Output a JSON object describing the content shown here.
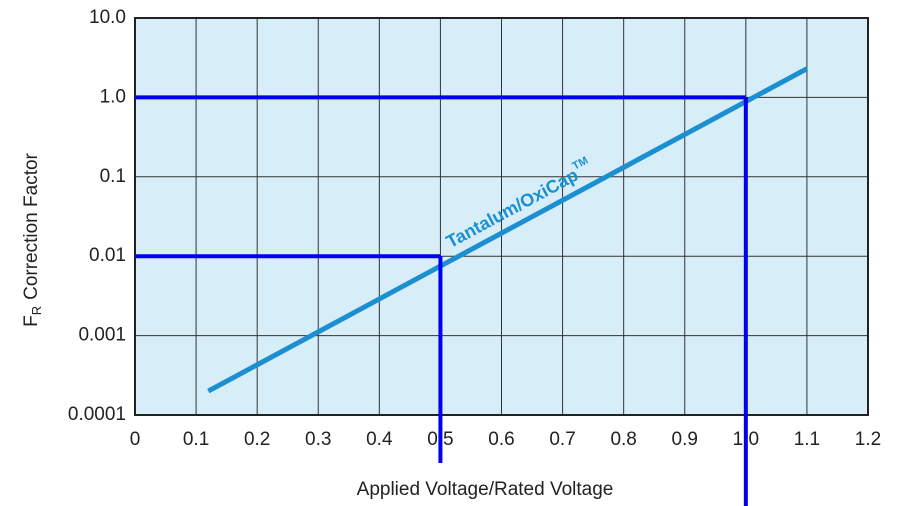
{
  "chart_data": {
    "type": "line",
    "x_label": "Applied Voltage/Rated Voltage",
    "y_label": {
      "symbol": "F",
      "subscript": "R",
      "text": "Correction Factor"
    },
    "annotation": {
      "text": "Tantalum/OxiCap",
      "superscript": "TM"
    },
    "log_y": true,
    "grid": true,
    "background": "#d7eef9",
    "xlim": [
      0,
      1.2
    ],
    "xticks": [
      0,
      0.1,
      0.2,
      0.3,
      0.4,
      0.5,
      0.6,
      0.7,
      0.8,
      0.9,
      {
        "value": 1.0,
        "label": "1.0"
      },
      1.1,
      1.2
    ],
    "ylim": [
      0.0001,
      10
    ],
    "yticks": [
      {
        "value": 10,
        "label": "10.0"
      },
      {
        "value": 1,
        "label": "1.0"
      },
      0.1,
      0.01,
      0.001,
      0.0001
    ],
    "series": [
      {
        "color": "#1b8fd2",
        "x": [
          0.12,
          1.1
        ],
        "values": [
          0.0002,
          2.3
        ]
      }
    ],
    "reference_lines": {
      "color": "#0000ee",
      "points": [
        {
          "x": 0.5,
          "y": 0.01
        },
        {
          "x": 1.0,
          "y": 1.0
        }
      ]
    }
  }
}
